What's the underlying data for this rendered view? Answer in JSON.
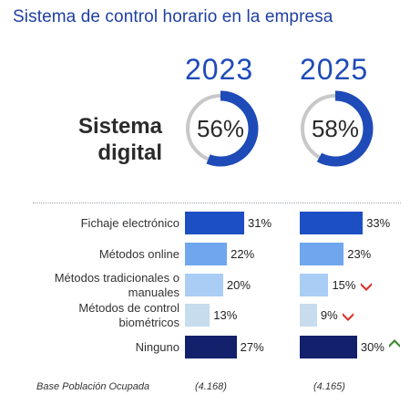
{
  "title": "Sistema de control horario en la empresa",
  "years": [
    "2023",
    "2025"
  ],
  "system_label_line1": "Sistema",
  "system_label_line2": "digital",
  "donuts": [
    {
      "year": "2023",
      "value": 56,
      "label": "56%"
    },
    {
      "year": "2025",
      "value": 58,
      "label": "58%"
    }
  ],
  "colors": {
    "donut_fill": "#1e4bb8",
    "donut_track": "#c8c8c8",
    "arrow_down": "#d9342b",
    "arrow_up": "#3a8a2e"
  },
  "chart_data": {
    "type": "bar",
    "orientation": "horizontal",
    "categories": [
      "Fichaje electrónico",
      "Métodos online",
      "Métodos tradicionales o manuales",
      "Métodos de control biométricos",
      "Ninguno"
    ],
    "series": [
      {
        "name": "2023",
        "values": [
          31,
          22,
          20,
          13,
          27
        ],
        "labels": [
          "31%",
          "22%",
          "20%",
          "13%",
          "27%"
        ]
      },
      {
        "name": "2025",
        "values": [
          33,
          23,
          15,
          9,
          30
        ],
        "labels": [
          "33%",
          "23%",
          "15%",
          "9%",
          "30%"
        ]
      }
    ],
    "bar_colors": [
      "#1d4fc4",
      "#6fa6ee",
      "#a9cdf5",
      "#c7dcec",
      "#13206b"
    ],
    "trend_2025": [
      "",
      "",
      "down",
      "down",
      "up"
    ],
    "value_unit": "%"
  },
  "base": {
    "label": "Base Población Ocupada",
    "values": [
      "(4.168)",
      "(4.165)"
    ]
  }
}
